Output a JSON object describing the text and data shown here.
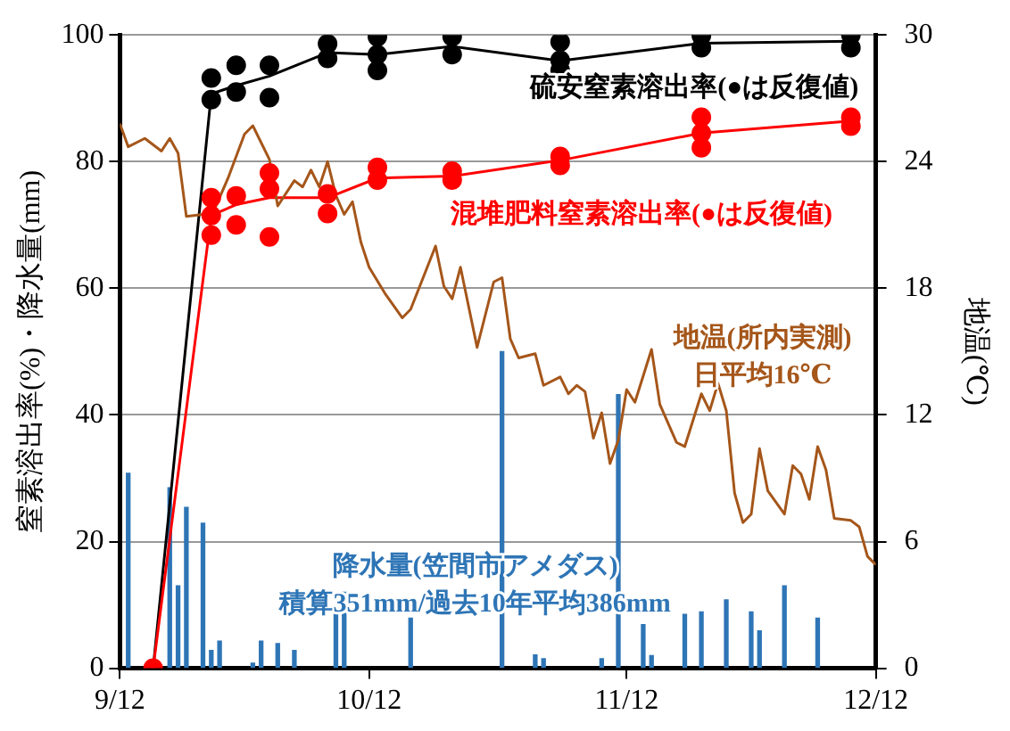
{
  "chart_data": {
    "type": "line",
    "ylabel": "窒素溶出率(%)・降水量(mm)",
    "y2label": "地温(℃)",
    "xlim": [
      "--09-12",
      "--12-12"
    ],
    "xticks": [
      {
        "value": "--09-12",
        "label": "9/12"
      },
      {
        "value": "--10-12",
        "label": "10/12"
      },
      {
        "value": "--11-12",
        "label": "11/12"
      },
      {
        "value": "--12-12",
        "label": "12/12"
      }
    ],
    "ylim": [
      0,
      100
    ],
    "yticks": [
      0,
      20,
      40,
      60,
      80,
      100
    ],
    "y2lim": [
      0,
      30
    ],
    "y2ticks": [
      0,
      6,
      12,
      18,
      24,
      30
    ],
    "grid": "y",
    "legend": false,
    "marker": "circle",
    "series": [
      {
        "type": "bar",
        "name": "降水量(笠間市アメダス)",
        "color": "#2e75b6",
        "x": [
          "--09-13",
          "--09-18",
          "--09-19",
          "--09-20",
          "--09-22",
          "--09-23",
          "--09-24",
          "--09-28",
          "--09-29",
          "--10-01",
          "--10-03",
          "--10-08",
          "--10-09",
          "--10-17",
          "--10-28",
          "--11-01",
          "--11-02",
          "--11-09",
          "--11-11",
          "--11-14",
          "--11-15",
          "--11-19",
          "--11-21",
          "--11-24",
          "--11-27",
          "--11-28",
          "--12-01",
          "--12-05"
        ],
        "values": [
          30.8,
          28.5,
          13,
          25.4,
          22.9,
          2.8,
          4.3,
          0.8,
          4.3,
          3.9,
          2.8,
          9,
          12,
          7.9,
          50,
          2.1,
          1.5,
          1.5,
          43.2,
          6.9,
          2,
          8.5,
          8.9,
          10.8,
          8.9,
          5.9,
          13,
          7.9
        ]
      },
      {
        "axis": "y2",
        "name": "地温(所内実測)",
        "color": "#a5561a",
        "marker": "none",
        "x": [
          "--09-12",
          "--09-13",
          "--09-15",
          "--09-17",
          "--09-18",
          "--09-19",
          "--09-20",
          "--09-22",
          "--09-23",
          "--09-25",
          "--09-27",
          "--09-28",
          "--09-30",
          "--10-01",
          "--10-03",
          "--10-04",
          "--10-05",
          "--10-06",
          "--10-07",
          "--10-08",
          "--10-09",
          "--10-10",
          "--10-11",
          "--10-12",
          "--10-14",
          "--10-16",
          "--10-17",
          "--10-19",
          "--10-20",
          "--10-21",
          "--10-22",
          "--10-23",
          "--10-25",
          "--10-27",
          "--10-28",
          "--10-29",
          "--10-30",
          "--11-01",
          "--11-02",
          "--11-04",
          "--11-05",
          "--11-06",
          "--11-07",
          "--11-08",
          "--11-09",
          "--11-10",
          "--11-11",
          "--11-12",
          "--11-13",
          "--11-15",
          "--11-16",
          "--11-18",
          "--11-19",
          "--11-21",
          "--11-22",
          "--11-23",
          "--11-24",
          "--11-25",
          "--11-26",
          "--11-27",
          "--11-28",
          "--11-29",
          "--12-01",
          "--12-02",
          "--12-03",
          "--12-04",
          "--12-05",
          "--12-06",
          "--12-07",
          "--12-09",
          "--12-10",
          "--12-11",
          "--12-12"
        ],
        "values": [
          25.8,
          24.7,
          25.1,
          24.5,
          25.1,
          24.4,
          21.4,
          21.5,
          21.4,
          23.2,
          25.3,
          25.7,
          24.1,
          21.9,
          23.1,
          22.8,
          23.6,
          22.8,
          24,
          22.4,
          21.5,
          22.1,
          20.2,
          19,
          17.7,
          16.6,
          17,
          19,
          20,
          18.1,
          17.5,
          19,
          15.2,
          18.3,
          18.5,
          15.6,
          14.7,
          14.9,
          13.4,
          13.8,
          13,
          13.4,
          13.1,
          10.9,
          12.1,
          9.7,
          10.8,
          13.2,
          12.6,
          15.1,
          12.5,
          10.7,
          10.5,
          13,
          12.2,
          13.5,
          12.2,
          8.3,
          6.9,
          7.3,
          10.4,
          8.4,
          7.3,
          9.6,
          9.2,
          8,
          10.5,
          9.4,
          7.1,
          7,
          6.7,
          5.3,
          4.9
        ]
      },
      {
        "name": "混堆肥料窒素溶出率(●は反復値)",
        "color": "#ff0000",
        "marker": "none",
        "x": [
          "--09-16",
          "--09-23",
          "--09-26",
          "--09-30",
          "--10-07",
          "--10-13",
          "--10-22",
          "--11-04",
          "--11-21",
          "--12-09"
        ],
        "values": [
          0,
          71.5,
          73.2,
          74.3,
          74.3,
          77.4,
          77.7,
          80.2,
          84.5,
          86.4
        ]
      },
      {
        "name": "硫安窒素溶出率(●は反復値)",
        "color": "#000000",
        "marker": "none",
        "x": [
          "--09-16",
          "--09-23",
          "--09-26",
          "--09-30",
          "--10-07",
          "--10-13",
          "--10-22",
          "--11-04",
          "--11-21",
          "--12-09"
        ],
        "values": [
          0,
          90.7,
          92,
          93.5,
          97.2,
          96.9,
          98.2,
          95.9,
          98.7,
          99
        ]
      },
      {
        "type": "scatter",
        "color": "#ff0000",
        "x": [
          "--09-16",
          "--09-23",
          "--09-23",
          "--09-23",
          "--09-26",
          "--09-26",
          "--09-30",
          "--09-30",
          "--09-30",
          "--10-07",
          "--10-07",
          "--10-13",
          "--10-13",
          "--10-22",
          "--10-22",
          "--11-04",
          "--11-04",
          "--11-21",
          "--11-21",
          "--11-21",
          "--12-09",
          "--12-09"
        ],
        "values": [
          0,
          74.3,
          71.5,
          68.4,
          74.6,
          70,
          78.2,
          75.7,
          68.1,
          74.9,
          71.8,
          79.1,
          77.1,
          78.5,
          77.1,
          80.8,
          79.4,
          87,
          84.5,
          82.2,
          87,
          85.6
        ]
      },
      {
        "type": "scatter",
        "color": "#000000",
        "x": [
          "--09-23",
          "--09-23",
          "--09-26",
          "--09-26",
          "--09-30",
          "--09-30",
          "--10-07",
          "--10-07",
          "--10-13",
          "--10-13",
          "--10-13",
          "--10-22",
          "--10-22",
          "--11-04",
          "--11-04",
          "--11-04",
          "--11-21",
          "--11-21",
          "--12-09",
          "--12-09"
        ],
        "values": [
          93.2,
          89.8,
          95.2,
          91,
          95.2,
          90.1,
          98.6,
          96.3,
          99.7,
          96.9,
          94.4,
          99.7,
          96.9,
          98.9,
          96,
          94.4,
          99.9,
          98,
          100,
          98
        ]
      }
    ],
    "annotations": [
      "日平均16℃",
      "積算351mm/過去10年平均386mm"
    ]
  }
}
